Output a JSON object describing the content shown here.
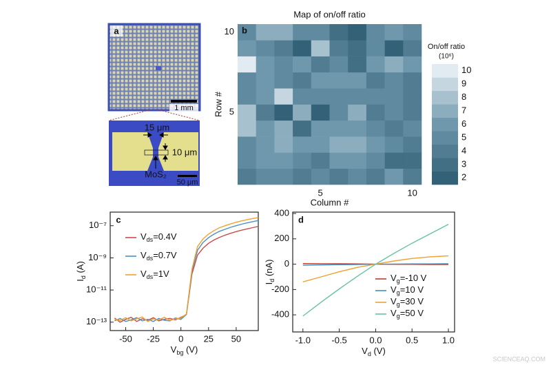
{
  "panel_a": {
    "label": "a",
    "scale_top": "1 mm",
    "width_label": "15 μm",
    "length_label": "10 μm",
    "material": "MoS₂",
    "scale_bottom": "50 μm"
  },
  "watermark": "SCIENCEAQ.COM",
  "chart_data": [
    {
      "type": "heatmap",
      "label": "b",
      "title": "Map of on/off ratio",
      "xlabel": "Column #",
      "ylabel": "Row #",
      "x": [
        1,
        2,
        3,
        4,
        5,
        6,
        7,
        8,
        9,
        10
      ],
      "y": [
        1,
        2,
        3,
        4,
        5,
        6,
        7,
        8,
        9,
        10
      ],
      "values": [
        [
          4,
          5,
          5,
          4,
          5,
          4,
          5,
          4,
          6,
          4
        ],
        [
          5,
          6,
          6,
          5,
          4,
          6,
          6,
          5,
          3,
          3
        ],
        [
          5,
          6,
          7,
          6,
          6,
          7,
          7,
          6,
          5,
          4
        ],
        [
          8,
          6,
          7,
          3,
          6,
          6,
          6,
          5,
          4,
          5
        ],
        [
          8,
          4,
          2,
          7,
          2,
          5,
          7,
          4,
          5,
          4
        ],
        [
          5,
          6,
          9,
          5,
          5,
          5,
          5,
          5,
          5,
          4
        ],
        [
          5,
          6,
          5,
          4,
          6,
          6,
          6,
          4,
          5,
          4
        ],
        [
          10,
          6,
          5,
          6,
          4,
          5,
          3,
          6,
          7,
          6
        ],
        [
          6,
          5,
          4,
          2,
          8,
          4,
          3,
          5,
          2,
          4
        ],
        [
          5,
          7,
          7,
          5,
          5,
          3,
          2,
          5,
          6,
          5
        ]
      ],
      "xlim": [
        0.5,
        10.5
      ],
      "ylim": [
        0.5,
        10.5
      ],
      "xticks": [
        5,
        10
      ],
      "yticks": [
        5,
        10
      ],
      "colorbar": {
        "label": "On/off ratio",
        "unit": "(10⁶)",
        "lim": [
          1.5,
          10.5
        ],
        "ticks": [
          2,
          3,
          4,
          5,
          6,
          7,
          8,
          9,
          10
        ],
        "colors": [
          "#2b5a70",
          "#6f98ad",
          "#f0f5fa"
        ]
      }
    },
    {
      "type": "line",
      "label": "c",
      "log_y": true,
      "legend": "upper left",
      "xlabel": [
        "V",
        "bg",
        " (V)"
      ],
      "ylabel": [
        "I",
        "d",
        " (A)"
      ],
      "x": [
        -60,
        -55,
        -50,
        -45,
        -40,
        -35,
        -30,
        -25,
        -20,
        -15,
        -10,
        -5,
        0,
        5,
        10,
        15,
        20,
        25,
        30,
        35,
        40,
        45,
        50,
        55,
        60,
        65,
        70
      ],
      "series": [
        {
          "name": [
            "V",
            "ds",
            "=0.4V"
          ],
          "color": "#c84b4b",
          "values": [
            1.8e-13,
            1e-13,
            1.5e-13,
            2e-13,
            1.1e-13,
            1.6e-13,
            1.3e-13,
            1.9e-13,
            1.2e-13,
            1.5e-13,
            1.7e-13,
            1.4e-13,
            2e-13,
            3e-13,
            1e-10,
            1.5e-09,
            4e-09,
            8e-09,
            1.3e-08,
            1.9e-08,
            2.6e-08,
            3.4e-08,
            4.3e-08,
            5.3e-08,
            6.4e-08,
            7.6e-08,
            9e-08
          ]
        },
        {
          "name": [
            "V",
            "ds",
            "=0.7V"
          ],
          "color": "#4a90c0",
          "values": [
            1.2e-13,
            1.7e-13,
            1.1e-13,
            1.4e-13,
            1.9e-13,
            1.2e-13,
            1.5e-13,
            1.1e-13,
            1.7e-13,
            1.3e-13,
            1.2e-13,
            1.8e-13,
            1.5e-13,
            3e-13,
            1.5e-10,
            3e-09,
            9e-09,
            1.8e-08,
            3e-08,
            4.5e-08,
            6e-08,
            8e-08,
            1e-07,
            1.25e-07,
            1.5e-07,
            1.8e-07,
            2.1e-07
          ]
        },
        {
          "name": [
            "V",
            "ds",
            "=1V"
          ],
          "color": "#f0a030",
          "values": [
            1.5e-13,
            1.3e-13,
            1.9e-13,
            1.2e-13,
            1.6e-13,
            2.1e-13,
            1.1e-13,
            1.6e-13,
            1.4e-13,
            2e-13,
            1.3e-13,
            1.6e-13,
            1.8e-13,
            3.2e-13,
            2e-10,
            5e-09,
            1.5e-08,
            3e-08,
            5e-08,
            7.5e-08,
            1e-07,
            1.3e-07,
            1.65e-07,
            2e-07,
            2.4e-07,
            2.8e-07,
            3.2e-07
          ]
        }
      ],
      "xlim": [
        -64,
        70
      ],
      "ylim": [
        3e-14,
        7e-07
      ],
      "xticks": [
        -50,
        -25,
        0,
        25,
        50
      ],
      "yticks": [
        {
          "value": 1e-13,
          "label": "10⁻¹³"
        },
        {
          "value": 1e-11,
          "label": "10⁻¹¹"
        },
        {
          "value": 1e-09,
          "label": "10⁻⁹"
        },
        {
          "value": 1e-07,
          "label": "10⁻⁷"
        }
      ]
    },
    {
      "type": "line",
      "label": "d",
      "log_y": false,
      "legend": "lower right",
      "xlabel": [
        "V",
        "d",
        " (V)"
      ],
      "ylabel": [
        "I",
        "d",
        " (nA)"
      ],
      "x": [
        -1,
        -0.75,
        -0.5,
        -0.25,
        0,
        0.25,
        0.5,
        0.75,
        1
      ],
      "series": [
        {
          "name": [
            "V",
            "g",
            "=-10 V"
          ],
          "color": "#c0392b",
          "values": [
            5,
            4,
            3,
            2,
            0,
            -1,
            -1,
            -2,
            -2
          ]
        },
        {
          "name": [
            "V",
            "g",
            "=10 V"
          ],
          "color": "#3a8fc0",
          "values": [
            -8,
            -6,
            -4,
            -2,
            0,
            1,
            2,
            2,
            3
          ]
        },
        {
          "name": [
            "V",
            "g",
            "=30 V"
          ],
          "color": "#f0a030",
          "values": [
            -140,
            -100,
            -60,
            -25,
            0,
            25,
            45,
            58,
            65
          ]
        },
        {
          "name": [
            "V",
            "g",
            "=50 V"
          ],
          "color": "#66c2a0",
          "values": [
            -410,
            -300,
            -195,
            -95,
            0,
            85,
            165,
            240,
            315
          ]
        }
      ],
      "xlim": [
        -1.14,
        1.085
      ],
      "ylim": [
        -535,
        411
      ],
      "xticks": [
        {
          "value": -1,
          "label": "-1.0"
        },
        -0.5,
        {
          "value": 0,
          "label": "0.0"
        },
        0.5,
        {
          "value": 1,
          "label": "1.0"
        }
      ],
      "yticks": [
        -400,
        -200,
        0,
        200,
        400
      ]
    }
  ]
}
